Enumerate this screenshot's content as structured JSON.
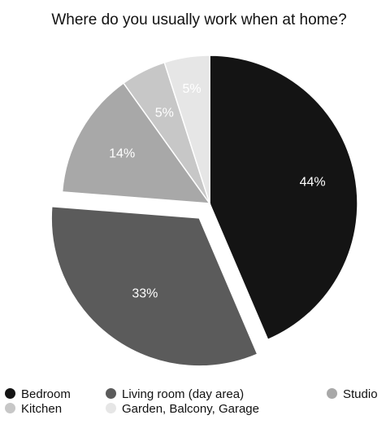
{
  "chart_data": {
    "type": "pie",
    "title": "Where do you usually work when at home?",
    "categories": [
      "Bedroom",
      "Living room (day area)",
      "Studio",
      "Kitchen",
      "Garden, Balcony, Garage"
    ],
    "values": [
      44,
      33,
      14,
      5,
      5
    ],
    "value_labels": [
      "44%",
      "33%",
      "14%",
      "5%",
      "5%"
    ],
    "colors": [
      "#141414",
      "#5b5b5b",
      "#a8a8a8",
      "#c7c7c7",
      "#e6e6e6"
    ],
    "exploded": [
      false,
      true,
      false,
      false,
      false
    ],
    "start_angle_deg": 0,
    "direction": "clockwise",
    "legend_position": "bottom"
  },
  "legend": [
    {
      "label": "Bedroom",
      "color": "#141414"
    },
    {
      "label": "Living room (day area)",
      "color": "#5b5b5b"
    },
    {
      "label": "Studio",
      "color": "#a8a8a8"
    },
    {
      "label": "Kitchen",
      "color": "#c7c7c7"
    },
    {
      "label": "Garden, Balcony, Garage",
      "color": "#e6e6e6"
    }
  ]
}
